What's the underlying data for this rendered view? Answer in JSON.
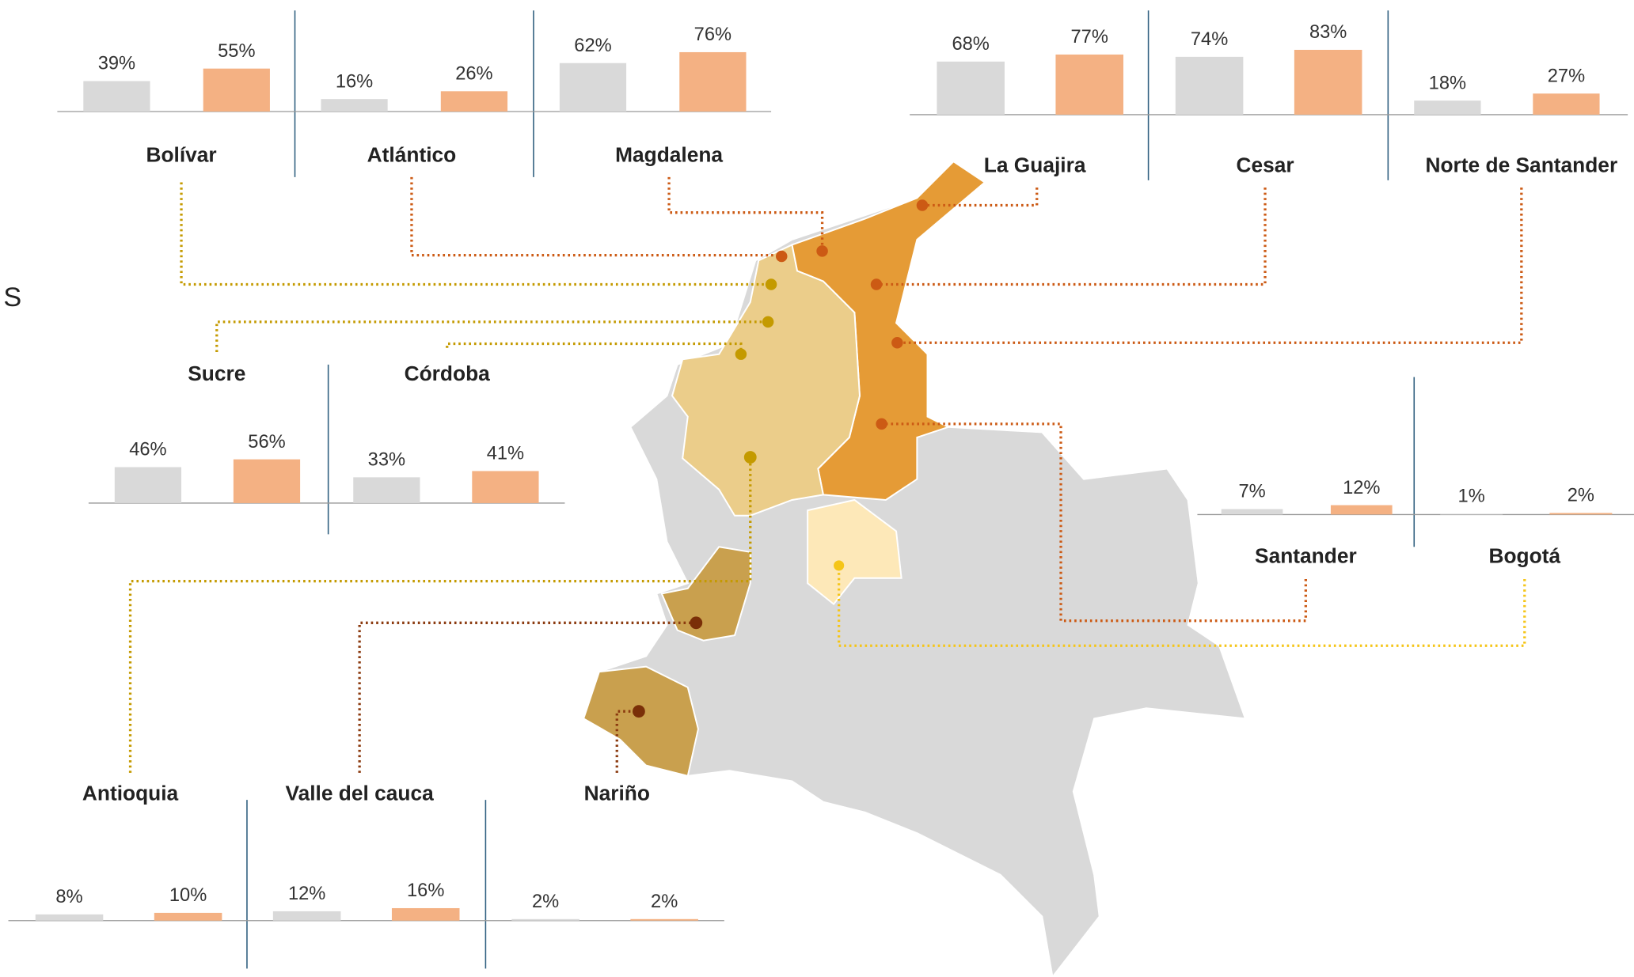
{
  "edge_text": "S",
  "series_colors": [
    "#d9d9d9",
    "#f4b183"
  ],
  "regions": [
    {
      "name": "Bolívar",
      "values": [
        39,
        55
      ],
      "value_labels": [
        "39%",
        "55%"
      ]
    },
    {
      "name": "Atlántico",
      "values": [
        16,
        26
      ],
      "value_labels": [
        "16%",
        "26%"
      ]
    },
    {
      "name": "Magdalena",
      "values": [
        62,
        76
      ],
      "value_labels": [
        "62%",
        "76%"
      ]
    },
    {
      "name": "La Guajira",
      "values": [
        68,
        77
      ],
      "value_labels": [
        "68%",
        "77%"
      ]
    },
    {
      "name": "Cesar",
      "values": [
        74,
        83
      ],
      "value_labels": [
        "74%",
        "83%"
      ]
    },
    {
      "name": "Norte de Santander",
      "values": [
        18,
        27
      ],
      "value_labels": [
        "18%",
        "27%"
      ]
    },
    {
      "name": "Sucre",
      "values": [
        46,
        56
      ],
      "value_labels": [
        "46%",
        "56%"
      ]
    },
    {
      "name": "Córdoba",
      "values": [
        33,
        41
      ],
      "value_labels": [
        "33%",
        "41%"
      ]
    },
    {
      "name": "Santander",
      "values": [
        7,
        12
      ],
      "value_labels": [
        "7%",
        "12%"
      ]
    },
    {
      "name": "Bogotá",
      "values": [
        1,
        2
      ],
      "value_labels": [
        "1%",
        "2%"
      ]
    },
    {
      "name": "Antioquia",
      "values": [
        8,
        10
      ],
      "value_labels": [
        "8%",
        "10%"
      ]
    },
    {
      "name": "Valle del cauca",
      "values": [
        12,
        16
      ],
      "value_labels": [
        "12%",
        "16%"
      ]
    },
    {
      "name": "Nariño",
      "values": [
        2,
        2
      ],
      "value_labels": [
        "2%",
        "2%"
      ]
    }
  ]
}
